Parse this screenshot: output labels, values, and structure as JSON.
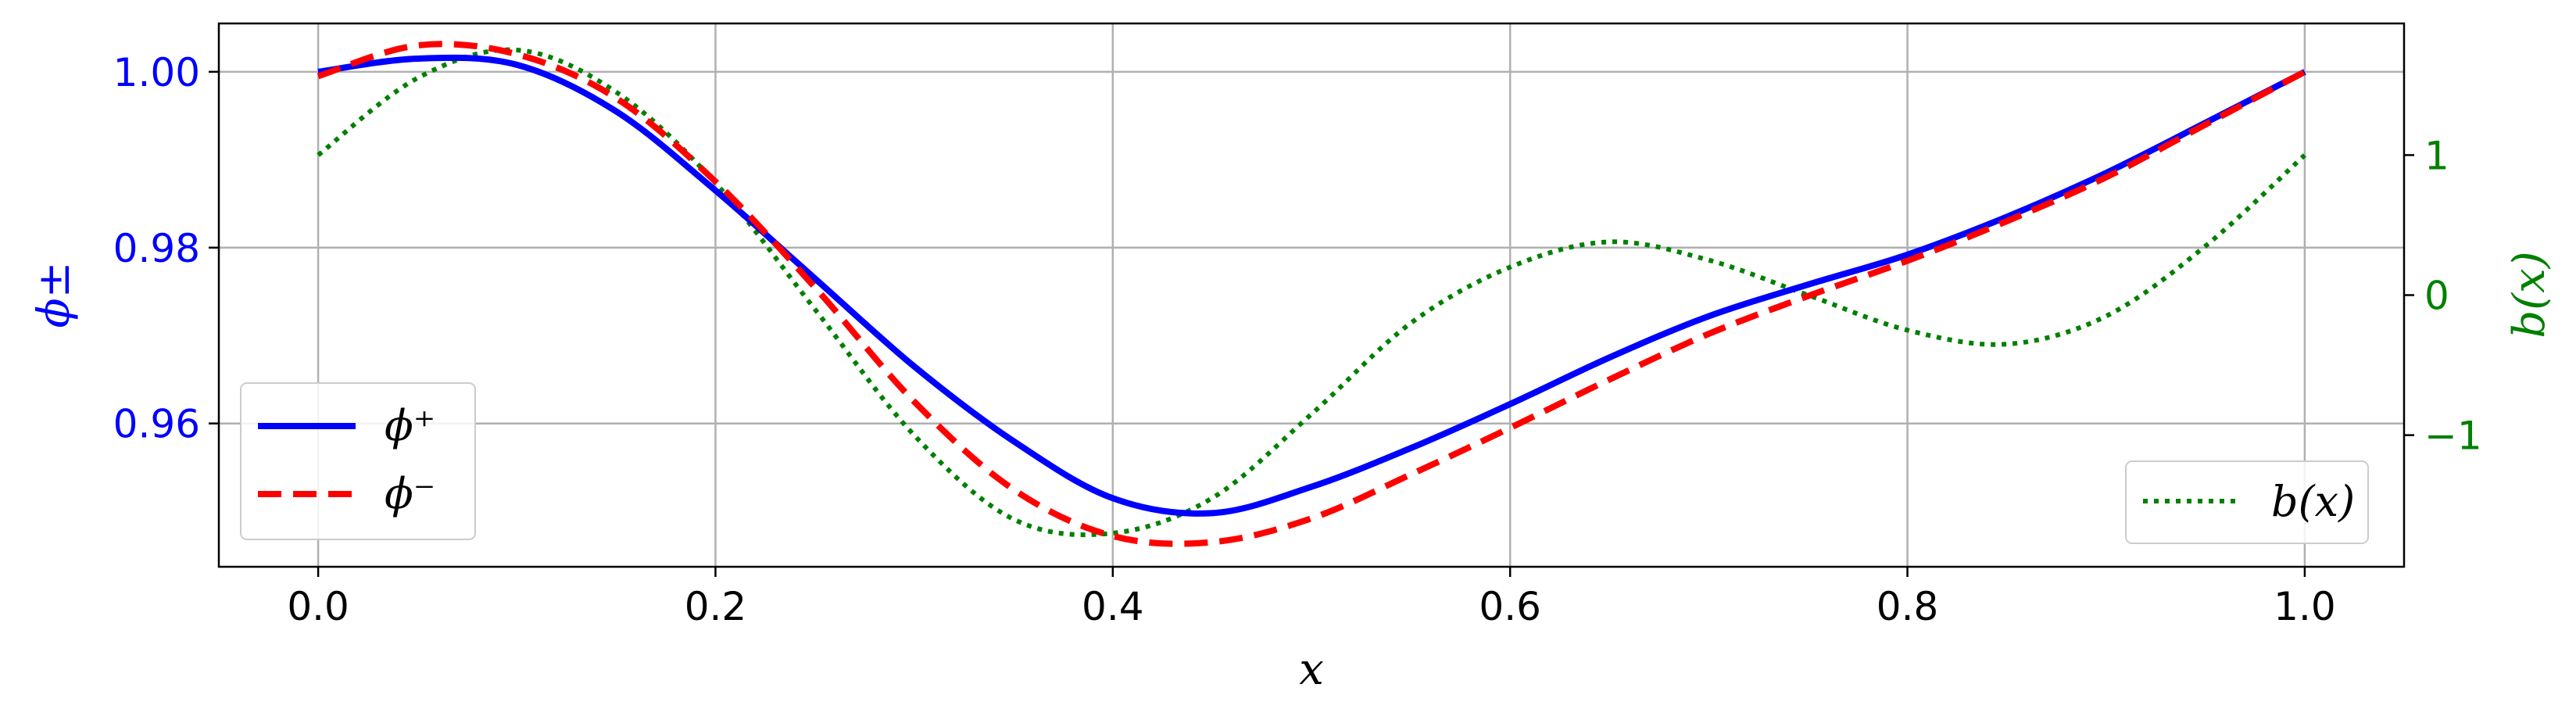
{
  "chart_data": {
    "type": "line",
    "xlabel": "x",
    "ylabel_left": "ϕ±",
    "ylabel_right": "b(x)",
    "xlim": [
      -0.05,
      1.05
    ],
    "ylim_left": [
      0.9437,
      1.0055
    ],
    "ylim_right": [
      -1.94,
      1.94
    ],
    "x_ticks": [
      "0.0",
      "0.2",
      "0.4",
      "0.6",
      "0.8",
      "1.0"
    ],
    "y_left_ticks": [
      "0.96",
      "0.98",
      "1.00"
    ],
    "y_right_ticks": [
      "−1",
      "0",
      "1"
    ],
    "grid": true,
    "colors": {
      "phi_plus": "#0000ff",
      "phi_minus": "#ff0000",
      "b": "#008000",
      "left_axis_text": "#0000ff",
      "right_axis_text": "#008000"
    },
    "series": [
      {
        "name": "ϕ⁺",
        "axis": "left",
        "style": "solid",
        "x": [
          0.0,
          0.05,
          0.1,
          0.15,
          0.2,
          0.25,
          0.3,
          0.35,
          0.4,
          0.45,
          0.5,
          0.55,
          0.6,
          0.65,
          0.7,
          0.75,
          0.8,
          0.85,
          0.9,
          0.95,
          1.0
        ],
        "values": [
          1.0,
          1.0015,
          1.0008,
          0.9955,
          0.9865,
          0.9765,
          0.9665,
          0.958,
          0.9515,
          0.9498,
          0.9528,
          0.9572,
          0.9622,
          0.9675,
          0.9722,
          0.9758,
          0.9792,
          0.9835,
          0.9885,
          0.9942,
          1.0
        ]
      },
      {
        "name": "ϕ⁻",
        "axis": "left",
        "style": "dashed",
        "x": [
          0.0,
          0.05,
          0.1,
          0.15,
          0.2,
          0.25,
          0.3,
          0.35,
          0.4,
          0.45,
          0.5,
          0.55,
          0.6,
          0.65,
          0.7,
          0.75,
          0.8,
          0.85,
          0.9,
          0.95,
          1.0
        ],
        "values": [
          0.9995,
          1.003,
          1.002,
          0.997,
          0.9875,
          0.9755,
          0.9625,
          0.9525,
          0.9472,
          0.9465,
          0.9492,
          0.9542,
          0.9595,
          0.965,
          0.9702,
          0.9745,
          0.9785,
          0.983,
          0.988,
          0.994,
          1.0
        ]
      },
      {
        "name": "b(x)",
        "axis": "right",
        "style": "dotted",
        "x": [
          0.0,
          0.05,
          0.1,
          0.15,
          0.2,
          0.25,
          0.3,
          0.35,
          0.4,
          0.45,
          0.5,
          0.55,
          0.6,
          0.65,
          0.7,
          0.75,
          0.8,
          0.85,
          0.9,
          0.95,
          1.0
        ],
        "values": [
          1.0,
          1.55,
          1.75,
          1.45,
          0.8,
          -0.1,
          -1.0,
          -1.6,
          -1.7,
          -1.45,
          -0.85,
          -0.2,
          0.2,
          0.38,
          0.25,
          0.0,
          -0.25,
          -0.35,
          -0.15,
          0.35,
          1.0
        ]
      }
    ],
    "legend_left": {
      "location": "lower-left",
      "entries": [
        "ϕ⁺",
        "ϕ⁻"
      ]
    },
    "legend_right": {
      "location": "lower-right",
      "entries": [
        "b(x)"
      ]
    }
  }
}
